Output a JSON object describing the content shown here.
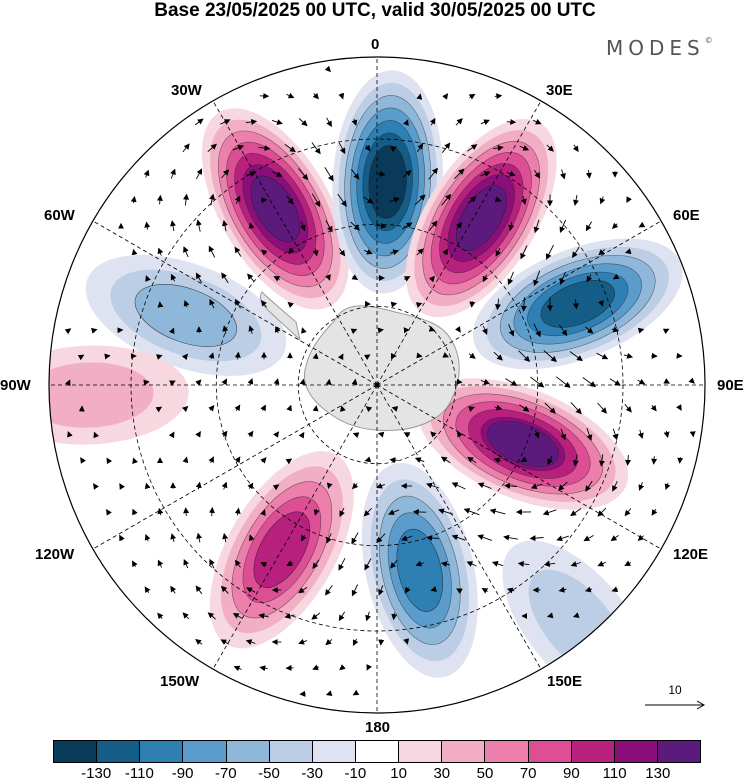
{
  "title": "Base 23/05/2025 00 UTC, valid 30/05/2025 00 UTC",
  "brand": "MODES",
  "brand_mark": "©",
  "longitude_labels": {
    "lon_0": "0",
    "lon_30e": "30E",
    "lon_60e": "60E",
    "lon_90e": "90E",
    "lon_120e": "120E",
    "lon_150e": "150E",
    "lon_180": "180",
    "lon_150w": "150W",
    "lon_120w": "120W",
    "lon_90w": "90W",
    "lon_60w": "60W",
    "lon_30w": "30W"
  },
  "reference_vector": {
    "label": "10",
    "value": 10
  },
  "colorbar": {
    "colors": [
      "#0a3a5a",
      "#145d86",
      "#2e7fb3",
      "#5a9ccb",
      "#8fb7da",
      "#bccde6",
      "#dfe2f0",
      "#ffffff",
      "#f8d8e0",
      "#f2aec4",
      "#ec7fab",
      "#dc4f95",
      "#b8207e",
      "#8a0f7a",
      "#5c1a7c"
    ],
    "tick_labels": [
      "-130",
      "-110",
      "-90",
      "-70",
      "-50",
      "-30",
      "-10",
      "10",
      "30",
      "50",
      "70",
      "90",
      "110",
      "130"
    ]
  },
  "anomaly_centers": [
    {
      "lon": 330,
      "colat": 0.62,
      "value": 130
    },
    {
      "lon": 3,
      "colat": 0.62,
      "value": -130
    },
    {
      "lon": 32,
      "colat": 0.6,
      "value": 130
    },
    {
      "lon": 68,
      "colat": 0.66,
      "value": -110
    },
    {
      "lon": 112,
      "colat": 0.48,
      "value": 120
    },
    {
      "lon": 167,
      "colat": 0.58,
      "value": -90
    },
    {
      "lon": 210,
      "colat": 0.58,
      "value": 90
    },
    {
      "lon": 290,
      "colat": 0.62,
      "value": -50
    },
    {
      "lon": 268,
      "colat": 0.88,
      "value": 30
    },
    {
      "lon": 140,
      "colat": 0.95,
      "value": -30
    }
  ]
}
